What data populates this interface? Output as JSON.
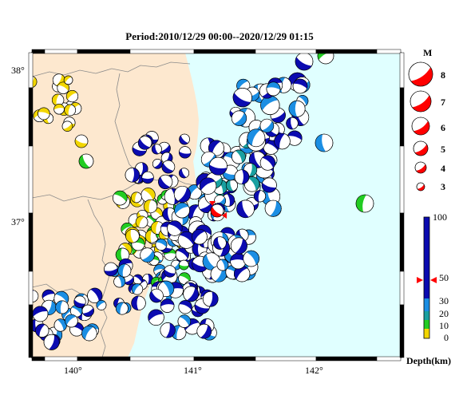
{
  "title": "Period:2010/12/29 00:00--2020/12/29 01:15",
  "colors": {
    "land": "#fde8cf",
    "sea": "#e0ffff",
    "shallow": "#f2d600",
    "mid": "#22cc22",
    "cyan": "#19a0a0",
    "light_blue": "#1b8ee3",
    "deep": "#0b0bb0",
    "latest": "#ff0000"
  },
  "axes": {
    "lat_labels": [
      "38°",
      "37°"
    ],
    "lon_labels": [
      "140°",
      "141°",
      "142°"
    ]
  },
  "magnitude_legend": {
    "title": "M",
    "values": [
      "8",
      "7",
      "6",
      "5",
      "4",
      "3"
    ]
  },
  "depth_legend": {
    "title": "Depth(km)",
    "ticks": [
      "100",
      "50",
      "30",
      "20",
      "10",
      "0"
    ],
    "marker_value": 48
  },
  "chart_data": {
    "type": "scatter",
    "title": "Period:2010/12/29 00:00--2020/12/29 01:15",
    "x_range": [
      139.7,
      142.75
    ],
    "y_range": [
      36.15,
      38.1
    ],
    "xlabel": "",
    "ylabel": "",
    "latest_event": {
      "lon": 141.17,
      "lat": 37.06,
      "mag": 4
    }
  }
}
